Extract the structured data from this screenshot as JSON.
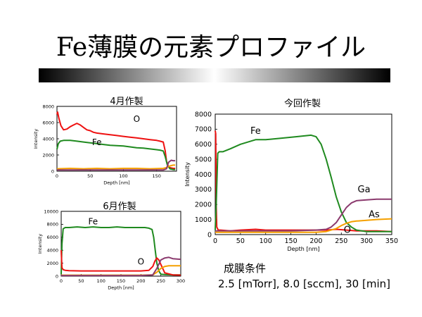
{
  "slide": {
    "title": "Fe薄膜の元素プロファイル",
    "conditions_label": "成膜条件",
    "conditions_value": "2.5 [mTorr], 8.0 [sccm], 30 [min]"
  },
  "colors": {
    "Fe": "#1f8a1f",
    "O": "#ee1111",
    "Ga": "#8b3a6e",
    "As": "#f5a000"
  },
  "chart_data": [
    {
      "type": "line",
      "title": "4月作製",
      "xlabel": "Depth [nm]",
      "ylabel": "Intensity",
      "xlim": [
        0,
        180
      ],
      "ylim": [
        0,
        8000
      ],
      "xticks": [
        0,
        50,
        100,
        150
      ],
      "yticks": [
        0,
        2000,
        4000,
        6000,
        8000
      ],
      "annotations": [
        {
          "text": "O",
          "x": 120,
          "y": 6100
        },
        {
          "text": "Fe",
          "x": 60,
          "y": 3200
        }
      ],
      "series": [
        {
          "name": "O",
          "color": "#ee1111",
          "x": [
            0,
            1,
            3,
            6,
            10,
            15,
            20,
            25,
            30,
            35,
            40,
            45,
            50,
            55,
            60,
            70,
            80,
            90,
            100,
            110,
            120,
            130,
            140,
            150,
            155,
            160,
            163,
            165,
            168,
            172,
            175,
            178
          ],
          "y": [
            7000,
            7300,
            6500,
            5600,
            5100,
            5200,
            5500,
            5700,
            5900,
            5700,
            5400,
            5100,
            5000,
            4800,
            4700,
            4600,
            4500,
            4400,
            4300,
            4200,
            4100,
            4000,
            3900,
            3800,
            3700,
            3600,
            2500,
            1200,
            500,
            400,
            350,
            350
          ]
        },
        {
          "name": "Fe",
          "color": "#1f8a1f",
          "x": [
            0,
            2,
            5,
            10,
            20,
            30,
            40,
            50,
            60,
            70,
            80,
            90,
            100,
            110,
            120,
            130,
            140,
            150,
            155,
            160,
            163,
            166,
            170,
            175,
            178
          ],
          "y": [
            2700,
            3400,
            3700,
            3800,
            3800,
            3700,
            3600,
            3500,
            3400,
            3300,
            3200,
            3150,
            3100,
            3000,
            2900,
            2850,
            2750,
            2650,
            2600,
            2500,
            1800,
            800,
            300,
            200,
            200
          ]
        },
        {
          "name": "As",
          "color": "#f5a000",
          "x": [
            0,
            20,
            40,
            60,
            80,
            100,
            120,
            140,
            160,
            165,
            170,
            175,
            178
          ],
          "y": [
            300,
            350,
            300,
            350,
            300,
            350,
            350,
            300,
            350,
            450,
            650,
            750,
            750
          ]
        },
        {
          "name": "Ga",
          "color": "#8b3a6e",
          "x": [
            0,
            40,
            80,
            120,
            160,
            165,
            168,
            172,
            175,
            178
          ],
          "y": [
            150,
            150,
            150,
            150,
            150,
            300,
            1100,
            1350,
            1300,
            1300
          ]
        }
      ]
    },
    {
      "type": "line",
      "title": "6月作製",
      "xlabel": "Depth [nm]",
      "ylabel": "Intensity",
      "xlim": [
        0,
        300
      ],
      "ylim": [
        0,
        10000
      ],
      "xticks": [
        0,
        50,
        100,
        150,
        200,
        250,
        300
      ],
      "yticks": [
        0,
        2000,
        4000,
        6000,
        8000,
        10000
      ],
      "annotations": [
        {
          "text": "Fe",
          "x": 80,
          "y": 8000
        },
        {
          "text": "O",
          "x": 200,
          "y": 1800
        }
      ],
      "series": [
        {
          "name": "Fe",
          "color": "#1f8a1f",
          "x": [
            0,
            2,
            5,
            10,
            20,
            40,
            60,
            80,
            100,
            120,
            140,
            160,
            180,
            200,
            210,
            220,
            228,
            232,
            236,
            240,
            245,
            250,
            260,
            280,
            300
          ],
          "y": [
            300,
            5000,
            7300,
            7500,
            7500,
            7600,
            7500,
            7600,
            7500,
            7500,
            7600,
            7500,
            7500,
            7500,
            7500,
            7400,
            7200,
            6000,
            4000,
            2000,
            800,
            300,
            250,
            200,
            200
          ]
        },
        {
          "name": "O",
          "color": "#ee1111",
          "x": [
            0,
            2,
            5,
            10,
            20,
            50,
            100,
            150,
            200,
            220,
            230,
            235,
            240,
            245,
            250,
            260,
            280,
            300
          ],
          "y": [
            4000,
            1300,
            1000,
            900,
            850,
            800,
            800,
            800,
            800,
            900,
            1500,
            2300,
            2800,
            2500,
            1800,
            500,
            200,
            150
          ]
        },
        {
          "name": "As",
          "color": "#f5a000",
          "x": [
            0,
            50,
            100,
            150,
            200,
            230,
            240,
            250,
            260,
            270,
            280,
            300
          ],
          "y": [
            150,
            150,
            150,
            150,
            150,
            200,
            600,
            1200,
            1500,
            1600,
            1600,
            1600
          ]
        },
        {
          "name": "Ga",
          "color": "#8b3a6e",
          "x": [
            0,
            50,
            100,
            150,
            200,
            230,
            240,
            250,
            260,
            270,
            280,
            300
          ],
          "y": [
            100,
            100,
            100,
            100,
            100,
            200,
            1200,
            2500,
            2800,
            2900,
            2700,
            2600
          ]
        }
      ]
    },
    {
      "type": "line",
      "title": "今回作製",
      "xlabel": "Depth [nm]",
      "ylabel": "Intensity",
      "xlim": [
        0,
        350
      ],
      "ylim": [
        0,
        8000
      ],
      "xticks": [
        0,
        50,
        100,
        150,
        200,
        250,
        300,
        350
      ],
      "yticks": [
        0,
        1000,
        2000,
        3000,
        4000,
        5000,
        6000,
        7000,
        8000
      ],
      "annotations": [
        {
          "text": "Fe",
          "x": 80,
          "y": 6700
        },
        {
          "text": "Ga",
          "x": 295,
          "y": 2800
        },
        {
          "text": "As",
          "x": 315,
          "y": 1150
        },
        {
          "text": "O",
          "x": 262,
          "y": 120
        }
      ],
      "series": [
        {
          "name": "O",
          "color": "#ee1111",
          "x": [
            0,
            1,
            2,
            3,
            6,
            10,
            30,
            50,
            80,
            100,
            150,
            200,
            220,
            240,
            260,
            280,
            300,
            320,
            350
          ],
          "y": [
            6900,
            6700,
            2000,
            500,
            300,
            300,
            250,
            300,
            350,
            300,
            300,
            300,
            300,
            350,
            300,
            250,
            250,
            250,
            200
          ]
        },
        {
          "name": "Fe",
          "color": "#1f8a1f",
          "x": [
            0,
            2,
            5,
            8,
            15,
            30,
            50,
            80,
            100,
            130,
            160,
            190,
            200,
            210,
            220,
            230,
            240,
            250,
            260,
            270,
            280,
            300,
            350
          ],
          "y": [
            300,
            2000,
            5400,
            5500,
            5500,
            5700,
            6000,
            6300,
            6300,
            6400,
            6500,
            6600,
            6500,
            6000,
            5000,
            3800,
            2500,
            1500,
            800,
            500,
            300,
            200,
            200
          ]
        },
        {
          "name": "Ga",
          "color": "#8b3a6e",
          "x": [
            0,
            50,
            100,
            150,
            200,
            220,
            230,
            240,
            250,
            260,
            270,
            280,
            300,
            320,
            350
          ],
          "y": [
            250,
            250,
            250,
            250,
            300,
            350,
            500,
            800,
            1300,
            1800,
            2100,
            2250,
            2300,
            2350,
            2350
          ]
        },
        {
          "name": "As",
          "color": "#f5a000",
          "x": [
            0,
            50,
            100,
            150,
            200,
            220,
            240,
            250,
            260,
            270,
            280,
            300,
            320,
            350
          ],
          "y": [
            150,
            150,
            150,
            150,
            150,
            200,
            400,
            600,
            750,
            850,
            900,
            950,
            1000,
            1050
          ]
        }
      ]
    }
  ]
}
